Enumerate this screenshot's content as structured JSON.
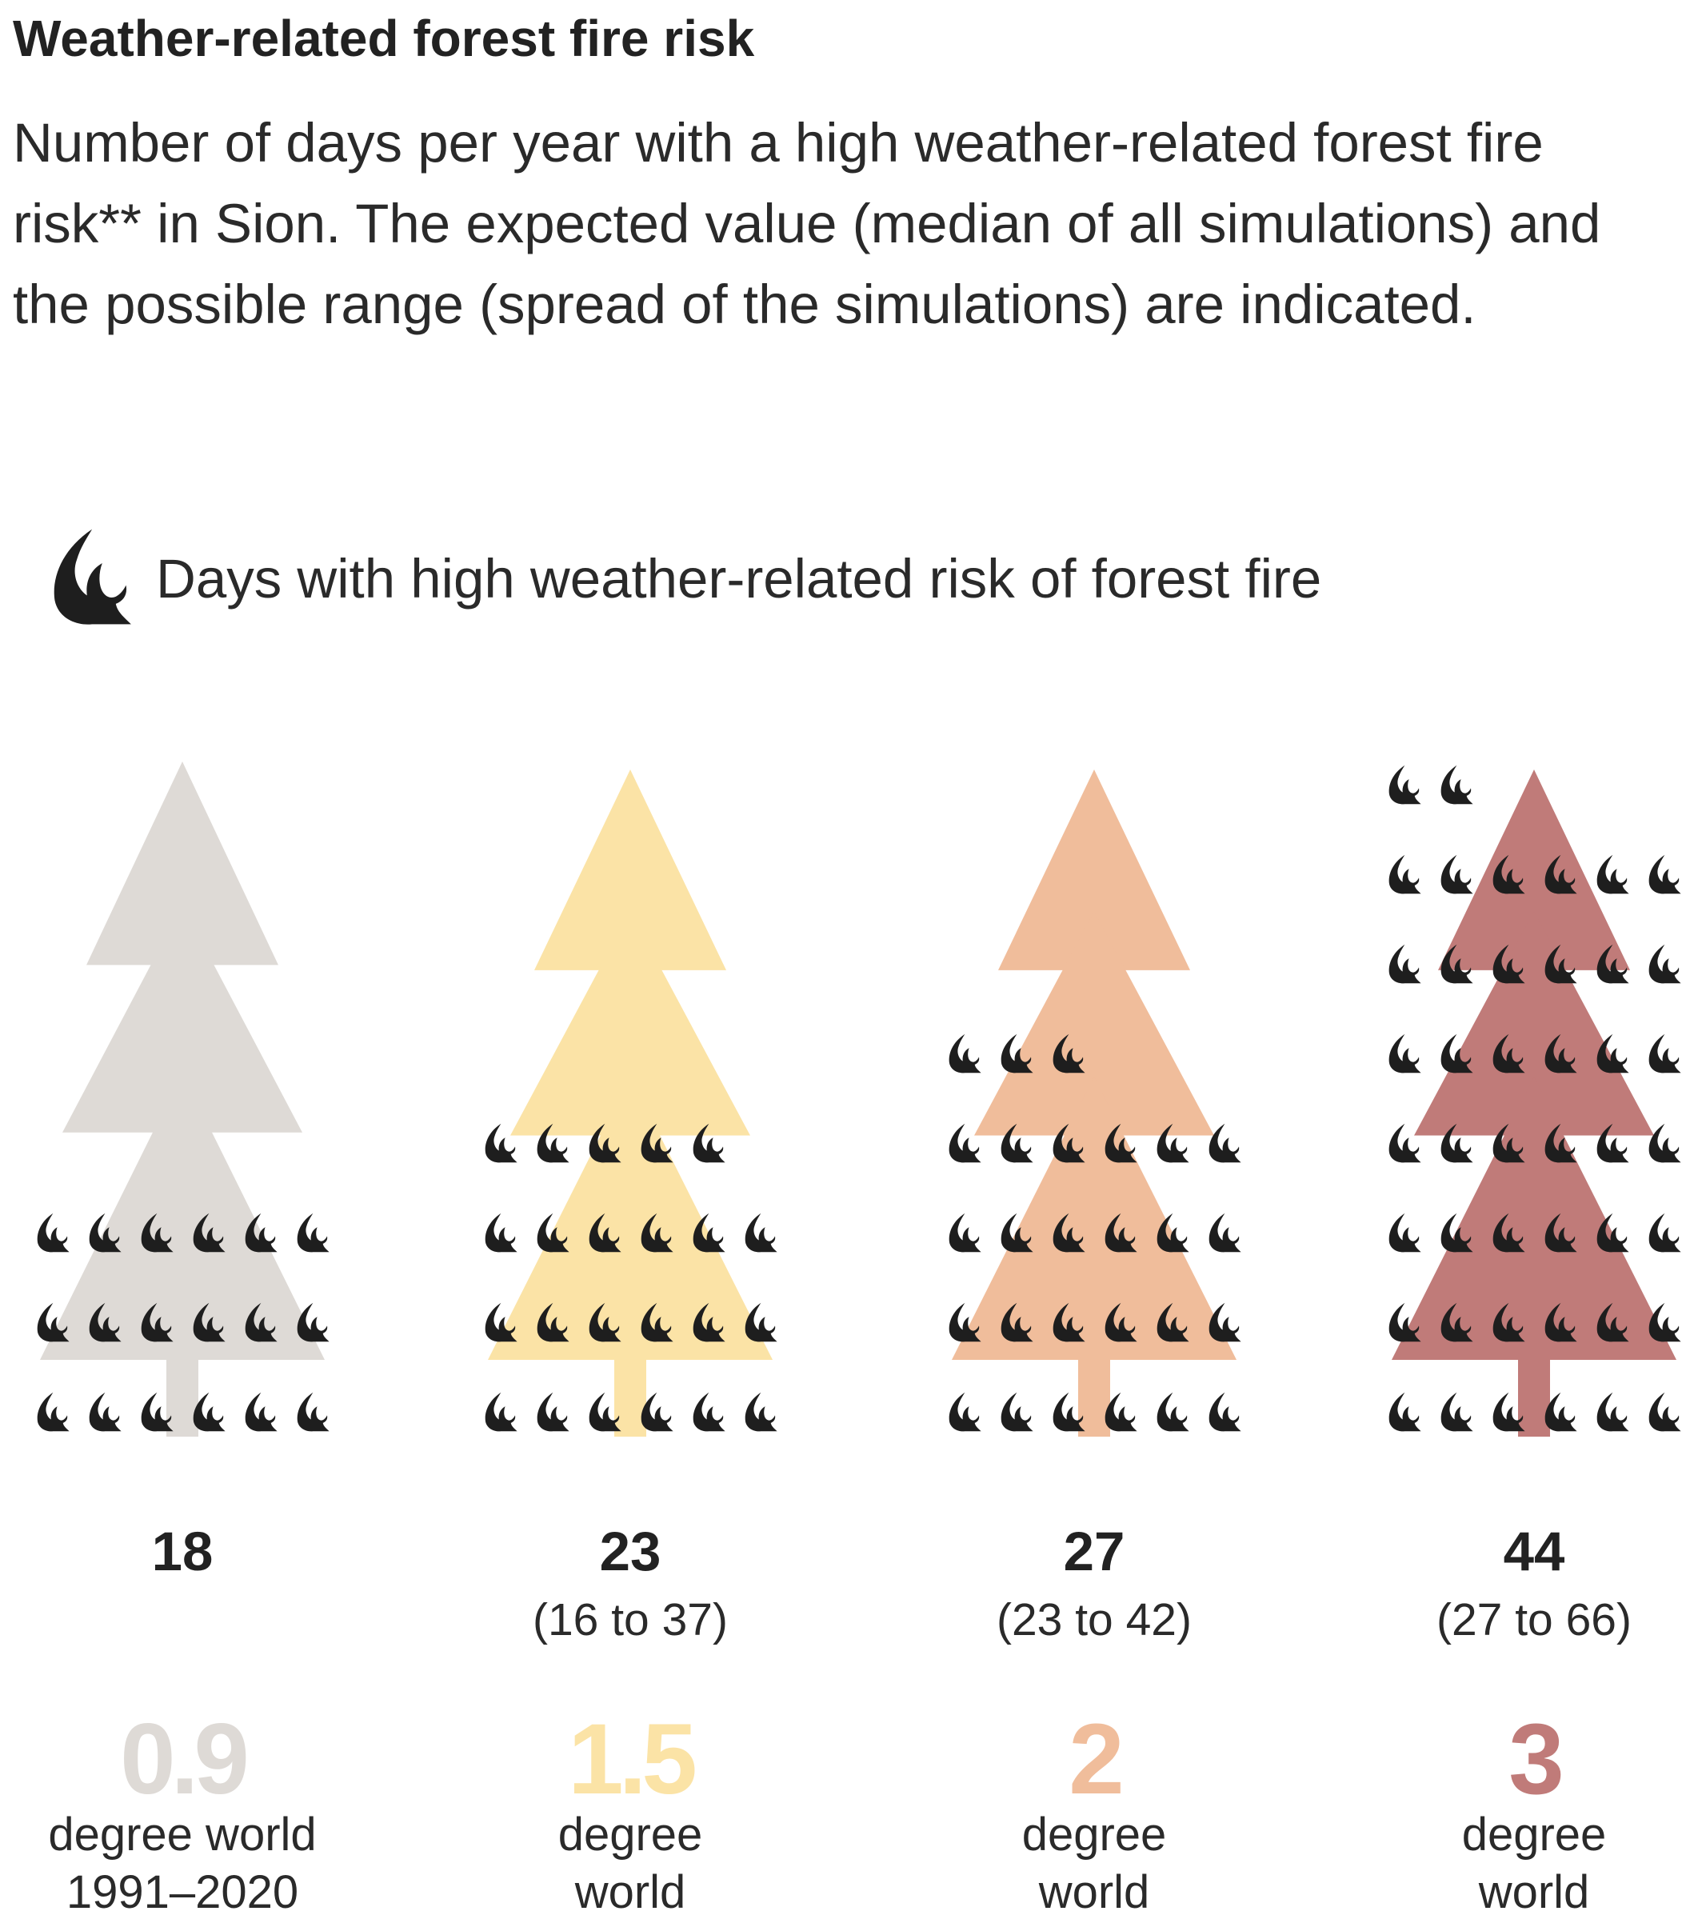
{
  "title": "Weather-related forest fire risk",
  "subtitle": "Number of days per year with a high weather-related forest fire risk** in Sion. The expected value (median of all simulations) and the possible range (spread of the simulations) are indicated.",
  "legend": {
    "icon": "flame-icon",
    "label": "Days with high weather-related risk of forest fire"
  },
  "chart_data": {
    "type": "pictogram",
    "unit_icon": "flame-icon",
    "unit": "Days with high weather-related risk of forest fire",
    "categories": [
      "0.9",
      "1.5",
      "2",
      "3"
    ],
    "series": [
      {
        "warming": "0.9",
        "label": "degree world\n1991–2020",
        "color": "#dedad6",
        "value": 18,
        "range": "",
        "range_low": null,
        "range_high": null
      },
      {
        "warming": "1.5",
        "label": "degree\nworld",
        "color": "#fbe3a6",
        "value": 23,
        "range": "(16 to 37)",
        "range_low": 16,
        "range_high": 37
      },
      {
        "warming": "2",
        "label": "degree\nworld",
        "color": "#f0bd9b",
        "value": 27,
        "range": "(23 to 42)",
        "range_low": 23,
        "range_high": 42
      },
      {
        "warming": "3",
        "label": "degree\nworld",
        "color": "#c07b79",
        "value": 44,
        "range": "(27 to 66)",
        "range_low": 27,
        "range_high": 66
      }
    ]
  }
}
